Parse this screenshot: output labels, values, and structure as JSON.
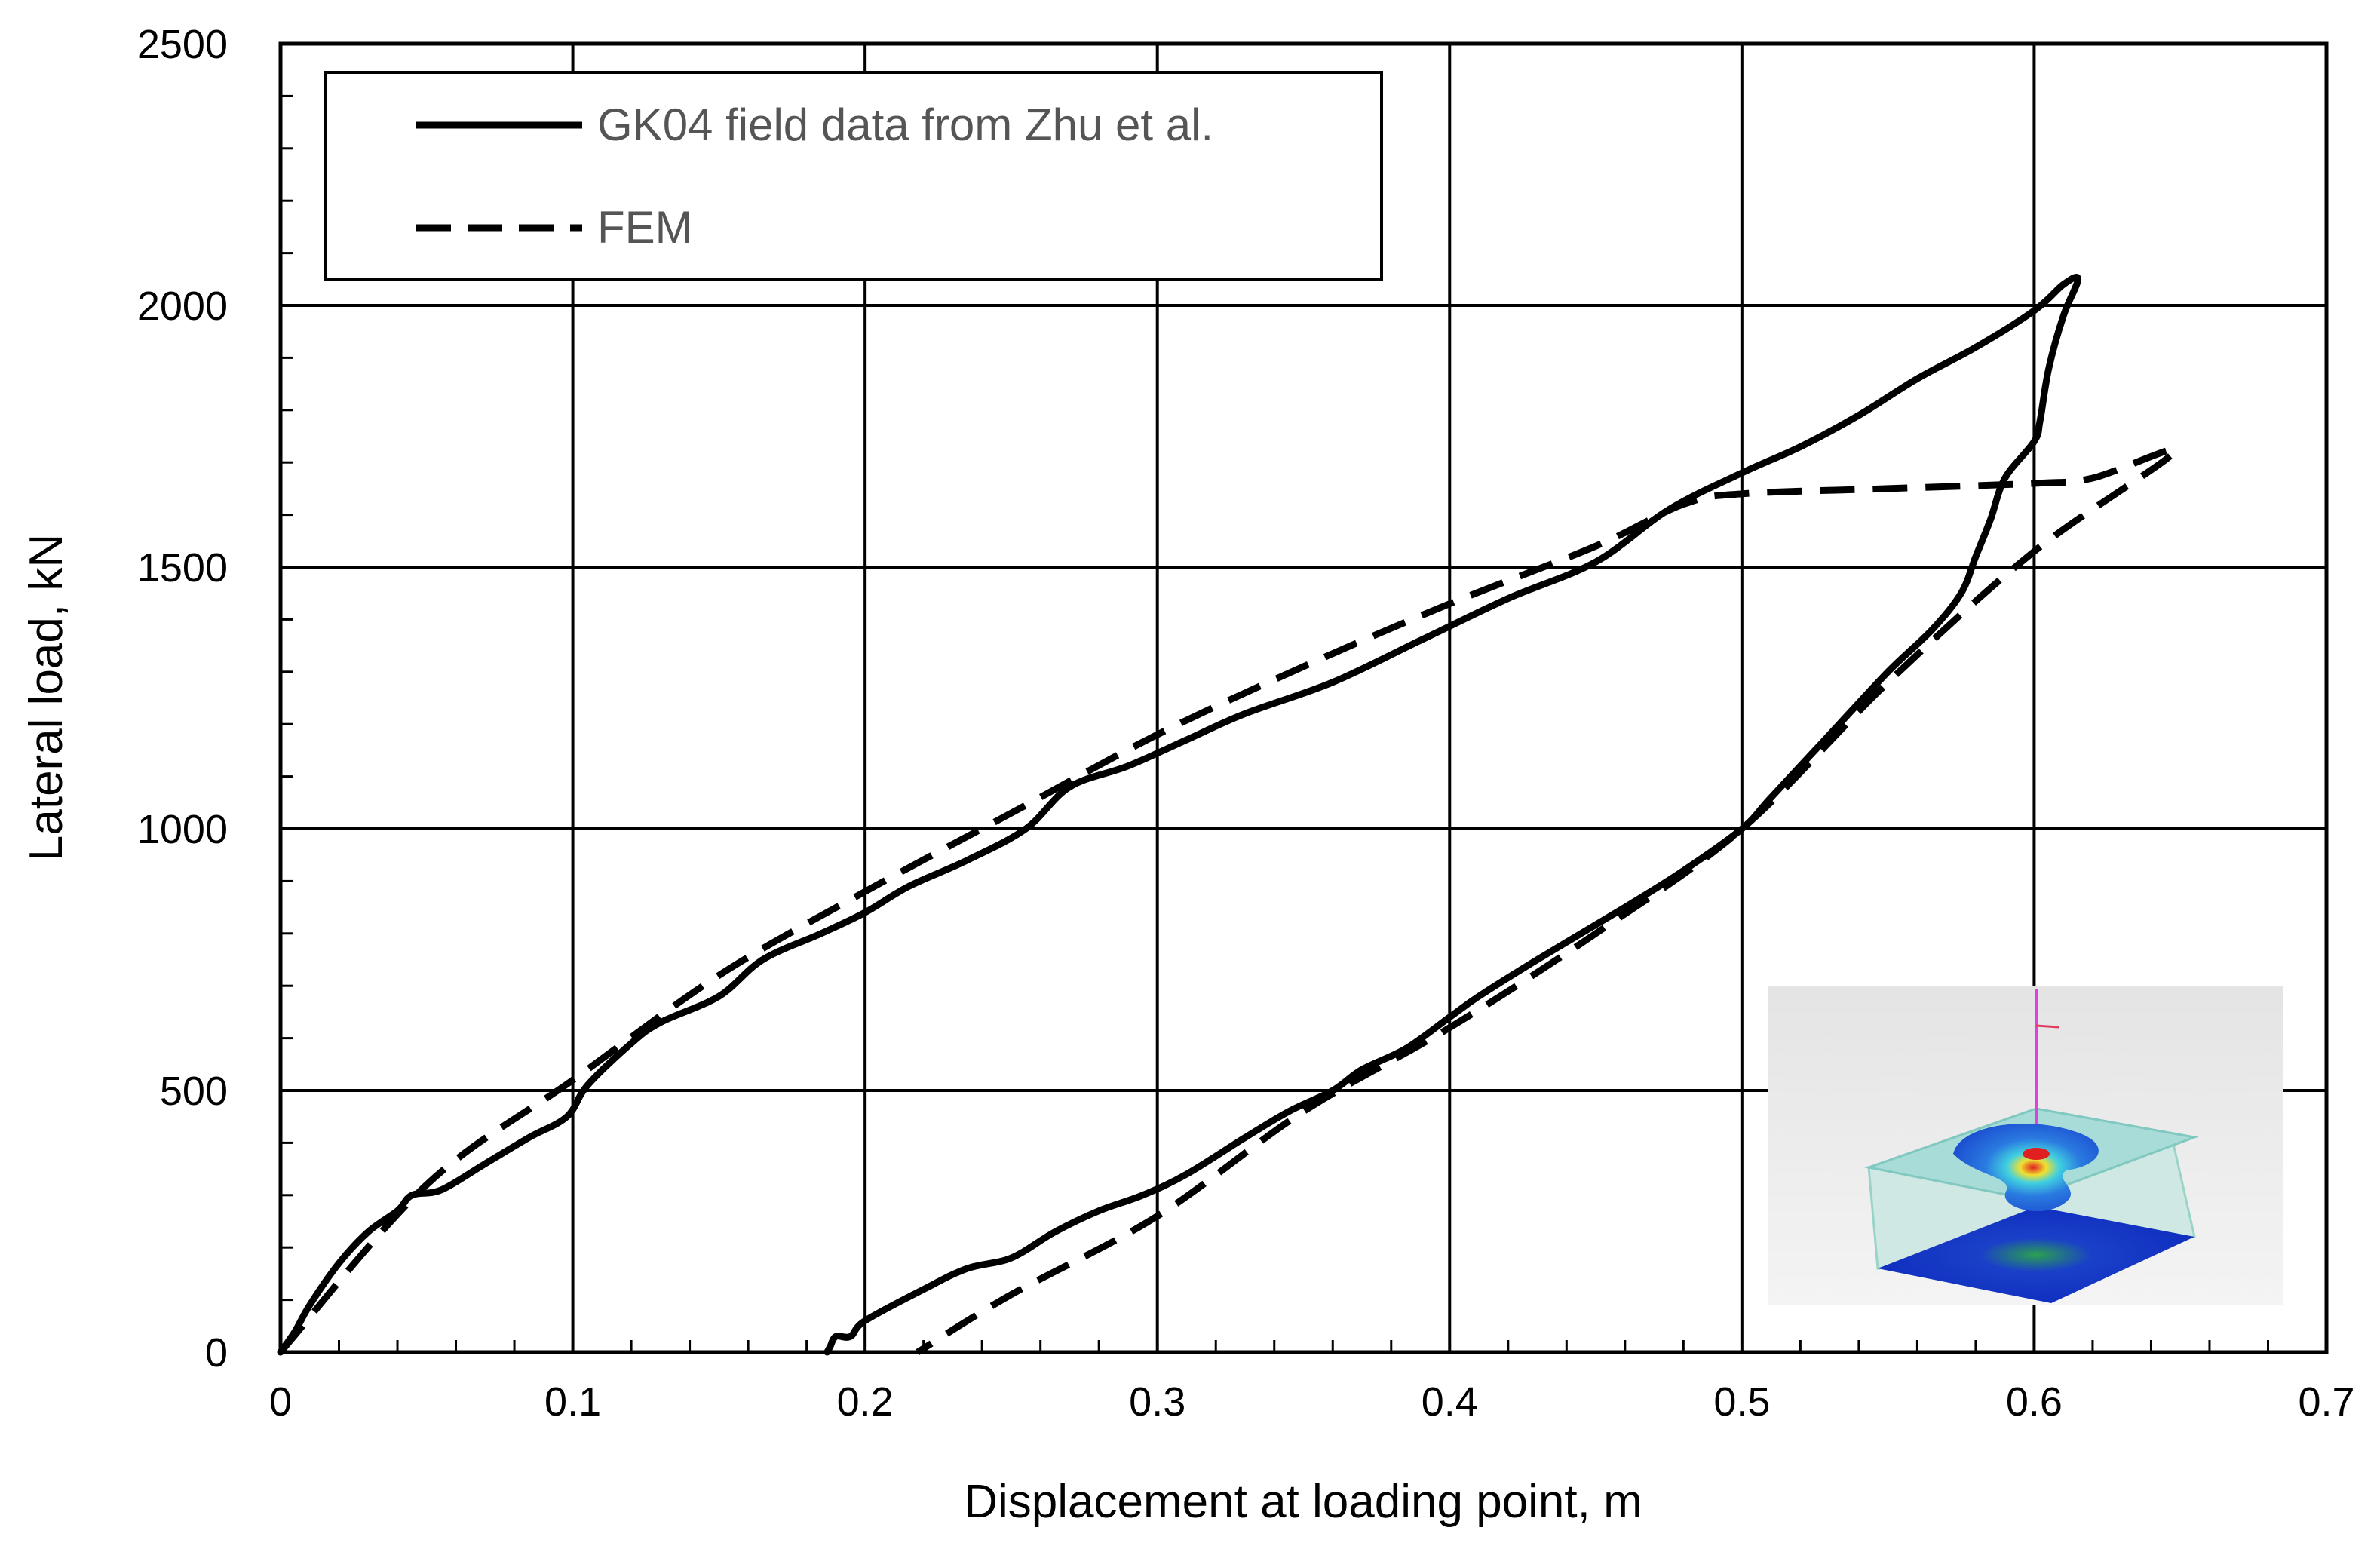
{
  "chart_data": {
    "type": "line",
    "title": "",
    "xlabel": "Displacement at loading point, m",
    "ylabel": "Lateral load, kN",
    "xlim": [
      0,
      0.7
    ],
    "ylim": [
      0,
      2500
    ],
    "x_ticks": [
      0,
      0.1,
      0.2,
      0.3,
      0.4,
      0.5,
      0.6,
      0.7
    ],
    "x_tick_labels": [
      "0",
      "0.1",
      "0.2",
      "0.3",
      "0.4",
      "0.5",
      "0.6",
      "0.7"
    ],
    "y_ticks": [
      0,
      500,
      1000,
      1500,
      2000,
      2500
    ],
    "y_tick_labels": [
      "0",
      "500",
      "1000",
      "1500",
      "2000",
      "2500"
    ],
    "grid": true,
    "legend_position": "top-left",
    "series": [
      {
        "name": "GK04 field data from Zhu et al.",
        "style": "solid",
        "color": "#000000",
        "points": [
          [
            0,
            0
          ],
          [
            0.005,
            40
          ],
          [
            0.01,
            90
          ],
          [
            0.02,
            170
          ],
          [
            0.03,
            230
          ],
          [
            0.04,
            270
          ],
          [
            0.045,
            300
          ],
          [
            0.055,
            310
          ],
          [
            0.07,
            360
          ],
          [
            0.085,
            410
          ],
          [
            0.098,
            450
          ],
          [
            0.105,
            510
          ],
          [
            0.12,
            590
          ],
          [
            0.13,
            630
          ],
          [
            0.15,
            680
          ],
          [
            0.165,
            750
          ],
          [
            0.185,
            800
          ],
          [
            0.2,
            840
          ],
          [
            0.215,
            890
          ],
          [
            0.235,
            940
          ],
          [
            0.255,
            1000
          ],
          [
            0.27,
            1080
          ],
          [
            0.29,
            1120
          ],
          [
            0.31,
            1170
          ],
          [
            0.33,
            1220
          ],
          [
            0.36,
            1280
          ],
          [
            0.39,
            1360
          ],
          [
            0.42,
            1440
          ],
          [
            0.45,
            1510
          ],
          [
            0.475,
            1610
          ],
          [
            0.5,
            1680
          ],
          [
            0.52,
            1730
          ],
          [
            0.54,
            1790
          ],
          [
            0.56,
            1860
          ],
          [
            0.58,
            1920
          ],
          [
            0.6,
            1990
          ],
          [
            0.61,
            2040
          ],
          [
            0.615,
            2050
          ],
          [
            0.61,
            1980
          ],
          [
            0.605,
            1880
          ],
          [
            0.602,
            1780
          ],
          [
            0.6,
            1740
          ],
          [
            0.59,
            1670
          ],
          [
            0.585,
            1590
          ],
          [
            0.58,
            1520
          ],
          [
            0.575,
            1450
          ],
          [
            0.565,
            1380
          ],
          [
            0.55,
            1300
          ],
          [
            0.53,
            1180
          ],
          [
            0.51,
            1060
          ],
          [
            0.5,
            1000
          ],
          [
            0.48,
            920
          ],
          [
            0.46,
            850
          ],
          [
            0.43,
            750
          ],
          [
            0.41,
            680
          ],
          [
            0.4,
            640
          ],
          [
            0.385,
            580
          ],
          [
            0.37,
            540
          ],
          [
            0.36,
            500
          ],
          [
            0.345,
            460
          ],
          [
            0.33,
            410
          ],
          [
            0.31,
            340
          ],
          [
            0.295,
            300
          ],
          [
            0.28,
            270
          ],
          [
            0.265,
            230
          ],
          [
            0.25,
            180
          ],
          [
            0.235,
            160
          ],
          [
            0.22,
            120
          ],
          [
            0.2,
            60
          ],
          [
            0.195,
            30
          ],
          [
            0.19,
            30
          ],
          [
            0.188,
            10
          ],
          [
            0.187,
            0
          ]
        ]
      },
      {
        "name": "FEM",
        "style": "dashed",
        "color": "#000000",
        "points": [
          [
            0,
            0
          ],
          [
            0.05,
            320
          ],
          [
            0.1,
            520
          ],
          [
            0.15,
            720
          ],
          [
            0.2,
            880
          ],
          [
            0.25,
            1030
          ],
          [
            0.3,
            1180
          ],
          [
            0.35,
            1310
          ],
          [
            0.4,
            1430
          ],
          [
            0.45,
            1540
          ],
          [
            0.48,
            1620
          ],
          [
            0.5,
            1640
          ],
          [
            0.55,
            1650
          ],
          [
            0.6,
            1660
          ],
          [
            0.62,
            1670
          ],
          [
            0.648,
            1720
          ],
          [
            0.6,
            1530
          ],
          [
            0.55,
            1280
          ],
          [
            0.5,
            1000
          ],
          [
            0.45,
            800
          ],
          [
            0.4,
            620
          ],
          [
            0.35,
            460
          ],
          [
            0.3,
            260
          ],
          [
            0.25,
            110
          ],
          [
            0.218,
            0
          ]
        ]
      }
    ]
  }
}
